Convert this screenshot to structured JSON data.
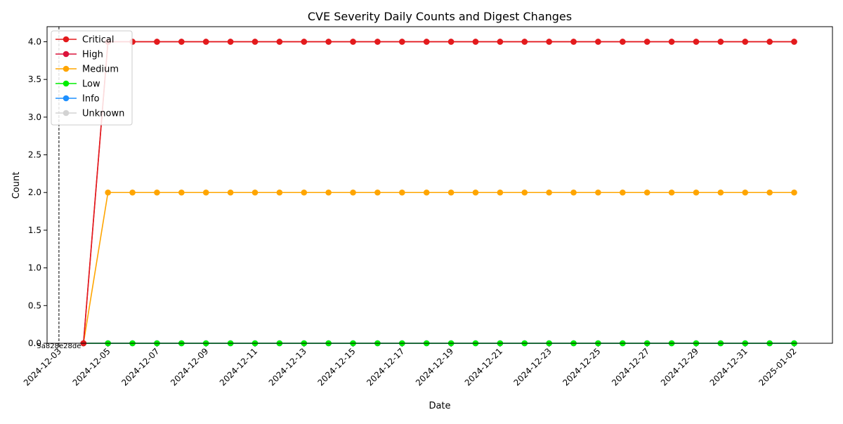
{
  "chart_data": {
    "type": "line",
    "title": "CVE Severity Daily Counts and Digest Changes",
    "xlabel": "Date",
    "ylabel": "Count",
    "ylim": [
      0,
      4.2
    ],
    "y_ticks": [
      "0.0",
      "0.5",
      "1.0",
      "1.5",
      "2.0",
      "2.5",
      "3.0",
      "3.5",
      "4.0"
    ],
    "x_tick_labels": [
      "2024-12-03",
      "2024-12-05",
      "2024-12-07",
      "2024-12-09",
      "2024-12-11",
      "2024-12-13",
      "2024-12-15",
      "2024-12-17",
      "2024-12-19",
      "2024-12-21",
      "2024-12-23",
      "2024-12-25",
      "2024-12-27",
      "2024-12-29",
      "2024-12-31",
      "2025-01-02"
    ],
    "x": [
      "2024-12-04",
      "2024-12-05",
      "2024-12-06",
      "2024-12-07",
      "2024-12-08",
      "2024-12-09",
      "2024-12-10",
      "2024-12-11",
      "2024-12-12",
      "2024-12-13",
      "2024-12-14",
      "2024-12-15",
      "2024-12-16",
      "2024-12-17",
      "2024-12-18",
      "2024-12-19",
      "2024-12-20",
      "2024-12-21",
      "2024-12-22",
      "2024-12-23",
      "2024-12-24",
      "2024-12-25",
      "2024-12-26",
      "2024-12-27",
      "2024-12-28",
      "2024-12-29",
      "2024-12-30",
      "2024-12-31",
      "2025-01-01",
      "2025-01-02"
    ],
    "series": [
      {
        "name": "Critical",
        "color": "#e31a1c",
        "values": [
          0,
          4,
          4,
          4,
          4,
          4,
          4,
          4,
          4,
          4,
          4,
          4,
          4,
          4,
          4,
          4,
          4,
          4,
          4,
          4,
          4,
          4,
          4,
          4,
          4,
          4,
          4,
          4,
          4,
          4
        ]
      },
      {
        "name": "High",
        "color": "#dc143c",
        "values": [
          0,
          4,
          4,
          4,
          4,
          4,
          4,
          4,
          4,
          4,
          4,
          4,
          4,
          4,
          4,
          4,
          4,
          4,
          4,
          4,
          4,
          4,
          4,
          4,
          4,
          4,
          4,
          4,
          4,
          4
        ]
      },
      {
        "name": "Medium",
        "color": "#ffa500",
        "values": [
          0,
          2,
          2,
          2,
          2,
          2,
          2,
          2,
          2,
          2,
          2,
          2,
          2,
          2,
          2,
          2,
          2,
          2,
          2,
          2,
          2,
          2,
          2,
          2,
          2,
          2,
          2,
          2,
          2,
          2
        ]
      },
      {
        "name": "Low",
        "color": "#00ee00",
        "values": [
          0,
          0,
          0,
          0,
          0,
          0,
          0,
          0,
          0,
          0,
          0,
          0,
          0,
          0,
          0,
          0,
          0,
          0,
          0,
          0,
          0,
          0,
          0,
          0,
          0,
          0,
          0,
          0,
          0,
          0
        ]
      },
      {
        "name": "Info",
        "color": "#1e90ff",
        "values": [
          0,
          0,
          0,
          0,
          0,
          0,
          0,
          0,
          0,
          0,
          0,
          0,
          0,
          0,
          0,
          0,
          0,
          0,
          0,
          0,
          0,
          0,
          0,
          0,
          0,
          0,
          0,
          0,
          0,
          0
        ]
      },
      {
        "name": "Unknown",
        "color": "#d3d3d3",
        "values": [
          0,
          0,
          0,
          0,
          0,
          0,
          0,
          0,
          0,
          0,
          0,
          0,
          0,
          0,
          0,
          0,
          0,
          0,
          0,
          0,
          0,
          0,
          0,
          0,
          0,
          0,
          0,
          0,
          0,
          0
        ]
      }
    ],
    "digest_changes": [
      {
        "date": "2024-12-03",
        "label": "5a828e28de"
      }
    ],
    "legend_position": "upper-left",
    "grid": false
  }
}
